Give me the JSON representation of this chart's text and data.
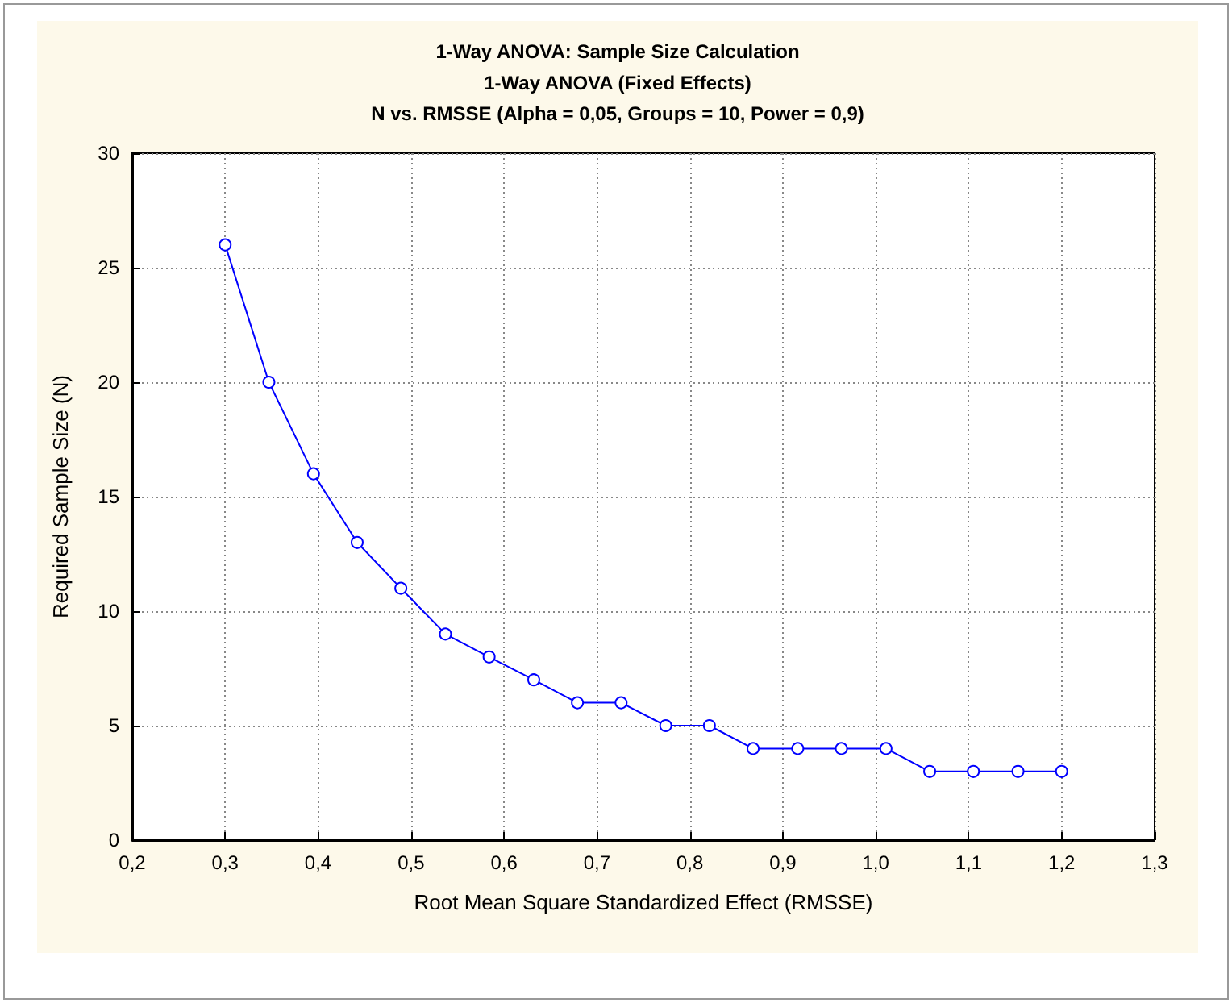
{
  "chart_data": {
    "type": "line",
    "title": "1-Way ANOVA: Sample Size Calculation",
    "subtitle": "1-Way ANOVA (Fixed Effects)\nN vs. RMSSE (Alpha = 0,05, Groups = 10, Power = 0,9)",
    "xlabel": "Root Mean Square Standardized Effect (RMSSE)",
    "ylabel": "Required Sample Size (N)",
    "x": [
      0.3,
      0.347,
      0.395,
      0.442,
      0.489,
      0.537,
      0.584,
      0.632,
      0.679,
      0.726,
      0.774,
      0.821,
      0.868,
      0.916,
      0.963,
      1.011,
      1.058,
      1.105,
      1.153,
      1.2
    ],
    "series": [
      {
        "color": "#0000ff",
        "values": [
          26,
          20,
          16,
          13,
          11,
          9,
          8,
          7,
          6,
          6,
          5,
          5,
          4,
          4,
          4,
          4,
          3,
          3,
          3,
          3
        ]
      }
    ],
    "xlim": [
      0.2,
      1.3
    ],
    "xticks": [
      {
        "value": 0.2,
        "label": "0,2"
      },
      {
        "value": 0.3,
        "label": "0,3"
      },
      {
        "value": 0.4,
        "label": "0,4"
      },
      {
        "value": 0.5,
        "label": "0,5"
      },
      {
        "value": 0.6,
        "label": "0,6"
      },
      {
        "value": 0.7,
        "label": "0,7"
      },
      {
        "value": 0.8,
        "label": "0,8"
      },
      {
        "value": 0.9,
        "label": "0,9"
      },
      {
        "value": 1.0,
        "label": "1,0"
      },
      {
        "value": 1.1,
        "label": "1,1"
      },
      {
        "value": 1.2,
        "label": "1,2"
      },
      {
        "value": 1.3,
        "label": "1,3"
      }
    ],
    "ylim": [
      0,
      30
    ],
    "yticks": [
      0,
      5,
      10,
      15,
      20,
      25,
      30
    ],
    "grid": true,
    "marker": "circle",
    "line_style": "solid"
  }
}
